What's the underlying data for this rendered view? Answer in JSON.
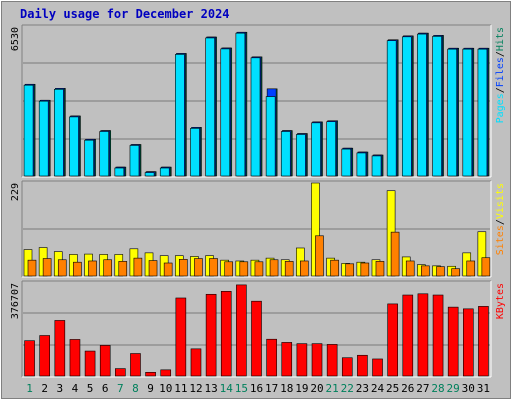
{
  "title": "Daily usage for December 2024",
  "colors": {
    "title": "#0000c0",
    "background": "#c0c0c0",
    "frame_outer": "#ffffff",
    "grid": "#7a7a7a",
    "hits": "#00805c",
    "files": "#0040ff",
    "pages": "#00e0ff",
    "visits": "#ffff00",
    "sites": "#ff8000",
    "kbytes": "#ff0000",
    "weekend_label": "#00805c",
    "weekday_label": "#000000"
  },
  "chart_data": [
    {
      "type": "bar",
      "name": "top-panel",
      "y_max_label": "6530",
      "right_label_parts": [
        {
          "text": "Pages",
          "color": "#00e0ff"
        },
        {
          "text": "/",
          "color": "#000000"
        },
        {
          "text": "Files",
          "color": "#0040ff"
        },
        {
          "text": "/",
          "color": "#000000"
        },
        {
          "text": "Hits",
          "color": "#00805c"
        }
      ],
      "ylim": [
        0,
        6530
      ],
      "categories": [
        "1",
        "2",
        "3",
        "4",
        "5",
        "6",
        "7",
        "8",
        "9",
        "10",
        "11",
        "12",
        "13",
        "14",
        "15",
        "16",
        "17",
        "18",
        "19",
        "20",
        "21",
        "22",
        "23",
        "24",
        "25",
        "26",
        "27",
        "28",
        "29",
        "30",
        "31"
      ],
      "series": [
        {
          "name": "Hits",
          "color": "#00805c",
          "values": [
            4020,
            3320,
            3840,
            2630,
            1610,
            1990,
            390,
            1380,
            190,
            390,
            5370,
            2130,
            6090,
            5610,
            6300,
            5220,
            3820,
            1990,
            1860,
            2370,
            2420,
            1220,
            1050,
            920,
            5970,
            6140,
            6260,
            6160,
            5600,
            5600,
            5600
          ]
        },
        {
          "name": "Files",
          "color": "#0040ff",
          "values": [
            4020,
            3320,
            3840,
            2630,
            1610,
            1990,
            390,
            1380,
            190,
            390,
            5370,
            2130,
            6090,
            5610,
            6300,
            5220,
            3820,
            1990,
            1860,
            2370,
            2420,
            1220,
            1050,
            920,
            5970,
            6140,
            6260,
            6160,
            5600,
            5600,
            5600
          ]
        },
        {
          "name": "Pages",
          "color": "#00e0ff",
          "values": [
            3980,
            3280,
            3800,
            2590,
            1570,
            1950,
            350,
            1340,
            150,
            350,
            5330,
            2090,
            6050,
            5570,
            6260,
            5180,
            3480,
            1950,
            1820,
            2330,
            2380,
            1180,
            1010,
            880,
            5930,
            6100,
            6220,
            6120,
            5560,
            5560,
            5560
          ]
        }
      ]
    },
    {
      "type": "bar",
      "name": "middle-panel",
      "y_max_label": "229",
      "right_label_parts": [
        {
          "text": "Sites",
          "color": "#ff8000"
        },
        {
          "text": "/",
          "color": "#000000"
        },
        {
          "text": "Visits",
          "color": "#ffff00"
        }
      ],
      "ylim": [
        0,
        229
      ],
      "categories": [
        "1",
        "2",
        "3",
        "4",
        "5",
        "6",
        "7",
        "8",
        "9",
        "10",
        "11",
        "12",
        "13",
        "14",
        "15",
        "16",
        "17",
        "18",
        "19",
        "20",
        "21",
        "22",
        "23",
        "24",
        "25",
        "26",
        "27",
        "28",
        "29",
        "30",
        "31"
      ],
      "series": [
        {
          "name": "Visits",
          "color": "#ffff00",
          "values": [
            65,
            70,
            60,
            53,
            54,
            53,
            53,
            67,
            57,
            50,
            50,
            48,
            50,
            39,
            37,
            39,
            44,
            40,
            69,
            229,
            44,
            31,
            34,
            40,
            210,
            47,
            28,
            25,
            24,
            57,
            109
          ]
        },
        {
          "name": "Sites",
          "color": "#ff8000",
          "values": [
            39,
            43,
            40,
            34,
            37,
            40,
            36,
            44,
            38,
            32,
            41,
            43,
            43,
            35,
            35,
            35,
            40,
            36,
            37,
            99,
            39,
            30,
            32,
            36,
            108,
            37,
            25,
            23,
            18,
            37,
            45
          ]
        }
      ]
    },
    {
      "type": "bar",
      "name": "bottom-panel",
      "y_max_label": "376707",
      "right_label_parts": [
        {
          "text": "KBytes",
          "color": "#ff0000"
        }
      ],
      "ylim": [
        0,
        376707
      ],
      "categories": [
        "1",
        "2",
        "3",
        "4",
        "5",
        "6",
        "7",
        "8",
        "9",
        "10",
        "11",
        "12",
        "13",
        "14",
        "15",
        "16",
        "17",
        "18",
        "19",
        "20",
        "21",
        "22",
        "23",
        "24",
        "25",
        "26",
        "27",
        "28",
        "29",
        "30",
        "31"
      ],
      "series": [
        {
          "name": "KBytes",
          "color": "#ff0000",
          "values": [
            143000,
            164000,
            225000,
            148000,
            101000,
            124000,
            30000,
            91000,
            15000,
            25000,
            316000,
            110000,
            331000,
            343000,
            369000,
            303000,
            149000,
            136000,
            131000,
            131000,
            128000,
            74000,
            84000,
            69000,
            292000,
            328000,
            333000,
            328000,
            279000,
            272000,
            282000
          ]
        }
      ]
    }
  ],
  "x_labels": [
    {
      "text": "1",
      "weekend": true
    },
    {
      "text": "2",
      "weekend": false
    },
    {
      "text": "3",
      "weekend": false
    },
    {
      "text": "4",
      "weekend": false
    },
    {
      "text": "5",
      "weekend": false
    },
    {
      "text": "6",
      "weekend": false
    },
    {
      "text": "7",
      "weekend": true
    },
    {
      "text": "8",
      "weekend": true
    },
    {
      "text": "9",
      "weekend": false
    },
    {
      "text": "10",
      "weekend": false
    },
    {
      "text": "11",
      "weekend": false
    },
    {
      "text": "12",
      "weekend": false
    },
    {
      "text": "13",
      "weekend": false
    },
    {
      "text": "14",
      "weekend": true
    },
    {
      "text": "15",
      "weekend": true
    },
    {
      "text": "16",
      "weekend": false
    },
    {
      "text": "17",
      "weekend": false
    },
    {
      "text": "18",
      "weekend": false
    },
    {
      "text": "19",
      "weekend": false
    },
    {
      "text": "20",
      "weekend": false
    },
    {
      "text": "21",
      "weekend": true
    },
    {
      "text": "22",
      "weekend": true
    },
    {
      "text": "23",
      "weekend": false
    },
    {
      "text": "24",
      "weekend": false
    },
    {
      "text": "25",
      "weekend": false
    },
    {
      "text": "26",
      "weekend": false
    },
    {
      "text": "27",
      "weekend": false
    },
    {
      "text": "28",
      "weekend": true
    },
    {
      "text": "29",
      "weekend": true
    },
    {
      "text": "30",
      "weekend": false
    },
    {
      "text": "31",
      "weekend": false
    }
  ]
}
